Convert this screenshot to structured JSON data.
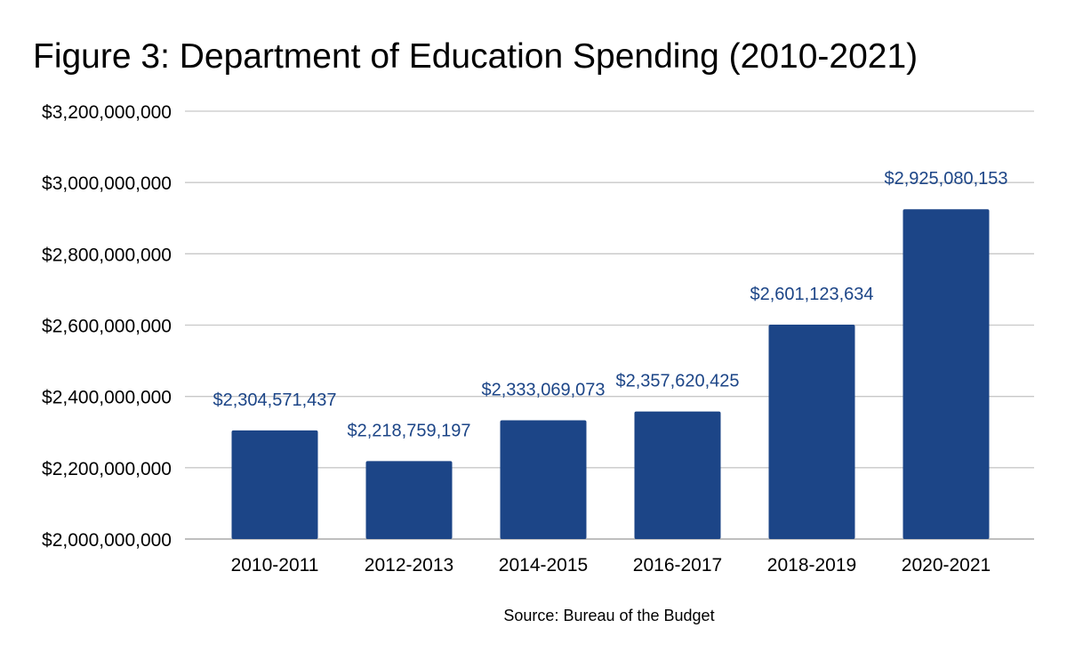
{
  "chart_data": {
    "type": "bar",
    "title": "Figure 3: Department of Education Spending (2010-2021)",
    "categories": [
      "2010-2011",
      "2012-2013",
      "2014-2015",
      "2016-2017",
      "2018-2019",
      "2020-2021"
    ],
    "values": [
      2304571437,
      2218759197,
      2333069073,
      2357620425,
      2601123634,
      2925080153
    ],
    "data_labels": [
      "$2,304,571,437",
      "$2,218,759,197",
      "$2,333,069,073",
      "$2,357,620,425",
      "$2,601,123,634",
      "$2,925,080,153"
    ],
    "ylim": [
      2000000000,
      3200000000
    ],
    "yticks": [
      2000000000,
      2200000000,
      2400000000,
      2600000000,
      2800000000,
      3000000000,
      3200000000
    ],
    "ytick_labels": [
      "$2,000,000,000",
      "$2,200,000,000",
      "$2,400,000,000",
      "$2,600,000,000",
      "$2,800,000,000",
      "$3,000,000,000",
      "$3,200,000,000"
    ],
    "xlabel": "Source: Bureau of the Budget",
    "ylabel": "",
    "grid": true,
    "legend": "none",
    "colors": {
      "bar": "#1c4587",
      "label": "#1c4587"
    }
  }
}
